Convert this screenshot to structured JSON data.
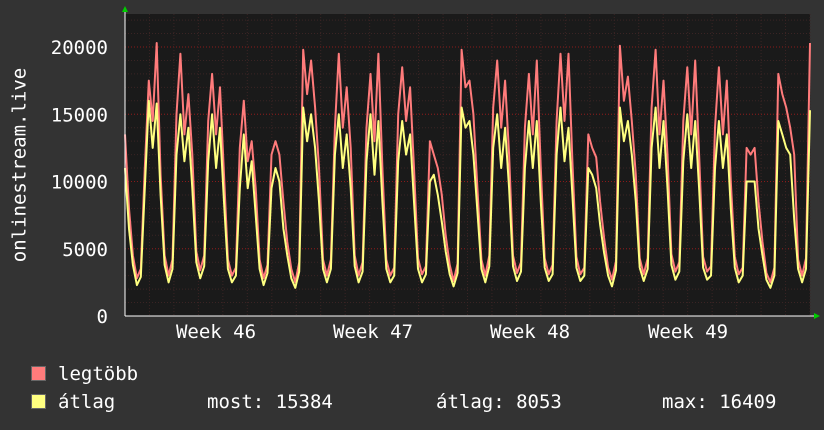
{
  "chart_data": {
    "type": "line",
    "ylabel": "onlinestream.live",
    "ylim": [
      0,
      20000
    ],
    "y_ticks": [
      "0",
      "5000",
      "10000",
      "15000",
      "20000"
    ],
    "x_ticks": [
      "Week 46",
      "Week 47",
      "Week 48",
      "Week 49"
    ],
    "grid": true,
    "background": "#1a1a1a",
    "grid_color": "#8a1a1a",
    "series": [
      {
        "name": "legtöbb",
        "color": "#ff7b7b",
        "values": [
          13500,
          8000,
          4500,
          2800,
          3500,
          11000,
          17500,
          14500,
          20300,
          10500,
          4500,
          3000,
          4200,
          15000,
          19500,
          13500,
          16500,
          12000,
          4800,
          3400,
          4500,
          14500,
          18000,
          13500,
          17000,
          10500,
          4200,
          3000,
          3600,
          12500,
          16000,
          11500,
          13000,
          9500,
          4200,
          2800,
          3800,
          12000,
          13000,
          12000,
          8500,
          5500,
          3500,
          2500,
          4000,
          19800,
          16500,
          19000,
          15500,
          11000,
          4200,
          3000,
          4200,
          14000,
          19500,
          14000,
          17000,
          12500,
          4500,
          3000,
          4000,
          14000,
          18000,
          13000,
          19500,
          11000,
          4200,
          3000,
          3600,
          15000,
          18500,
          14500,
          17000,
          11000,
          4300,
          3100,
          3700,
          13000,
          12000,
          11000,
          9000,
          6000,
          3800,
          2600,
          3900,
          19800,
          17000,
          17500,
          15000,
          9500,
          4200,
          3000,
          4500,
          15500,
          19000,
          14000,
          17500,
          12000,
          4500,
          3200,
          4000,
          14000,
          18000,
          13500,
          19000,
          11000,
          4300,
          3100,
          3800,
          14500,
          19500,
          14500,
          19500,
          11500,
          4400,
          3100,
          3600,
          13500,
          12500,
          11800,
          8500,
          5800,
          3600,
          2700,
          4100,
          20100,
          16000,
          17800,
          14500,
          10500,
          4300,
          3100,
          4300,
          15500,
          19800,
          13500,
          17500,
          12000,
          4600,
          3300,
          4000,
          14500,
          18500,
          13500,
          19000,
          12000,
          4400,
          3300,
          3700,
          14000,
          18500,
          13500,
          17500,
          10000,
          4400,
          3100,
          3600,
          12500,
          12000,
          12500,
          8500,
          5500,
          3200,
          2500,
          3600,
          18000,
          16500,
          15500,
          14000,
          12000,
          4200,
          3000,
          4300,
          20300
        ]
      },
      {
        "name": "átlag",
        "color": "#ffff80",
        "values": [
          11000,
          6500,
          3800,
          2300,
          2900,
          9500,
          16000,
          12500,
          15800,
          9000,
          3800,
          2500,
          3500,
          12000,
          15000,
          11500,
          14000,
          9500,
          4000,
          2800,
          3700,
          11500,
          15000,
          11000,
          14000,
          8500,
          3500,
          2500,
          3000,
          9500,
          13500,
          9500,
          11500,
          7500,
          3500,
          2300,
          3200,
          9500,
          11000,
          10000,
          6500,
          4500,
          2800,
          2100,
          3300,
          15500,
          13000,
          15000,
          12500,
          8500,
          3500,
          2500,
          3500,
          12000,
          15000,
          11000,
          13500,
          9500,
          3700,
          2500,
          3300,
          11500,
          15000,
          10500,
          14500,
          8500,
          3500,
          2500,
          3000,
          11500,
          14500,
          12000,
          13500,
          8500,
          3500,
          2500,
          3100,
          10000,
          10500,
          9000,
          7000,
          4800,
          3100,
          2200,
          3200,
          15500,
          14000,
          14500,
          12000,
          7800,
          3500,
          2500,
          3700,
          12500,
          15000,
          11000,
          14000,
          9500,
          3700,
          2600,
          3300,
          11000,
          14500,
          11000,
          14500,
          8500,
          3600,
          2600,
          3100,
          12000,
          15500,
          11500,
          14000,
          9000,
          3600,
          2600,
          3000,
          11000,
          10500,
          9500,
          6800,
          4700,
          3000,
          2200,
          3400,
          15500,
          13000,
          14500,
          12000,
          8500,
          3600,
          2600,
          3500,
          12500,
          15500,
          11000,
          14500,
          9500,
          3800,
          2700,
          3300,
          11500,
          15000,
          11000,
          14500,
          9500,
          3600,
          2700,
          3000,
          11000,
          14500,
          11000,
          13500,
          8000,
          3600,
          2500,
          3000,
          10000,
          10000,
          10000,
          6500,
          4500,
          2700,
          2100,
          3000,
          14500,
          13500,
          12500,
          12000,
          7200,
          3500,
          2500,
          3500,
          15300
        ]
      }
    ]
  },
  "legend": [
    {
      "label": "legtöbb",
      "color": "#ff7b7b"
    },
    {
      "label": "átlag",
      "color": "#ffff80"
    }
  ],
  "stats": {
    "most": "most: 15384",
    "atlag": "átlag: 8053",
    "max": "max: 16409"
  }
}
